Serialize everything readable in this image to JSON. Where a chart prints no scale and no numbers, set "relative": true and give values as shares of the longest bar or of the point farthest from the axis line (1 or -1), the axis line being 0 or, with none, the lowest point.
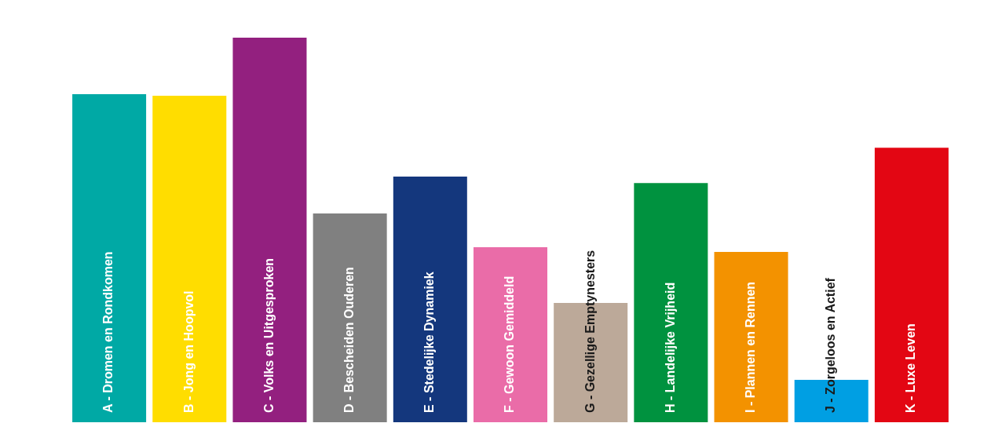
{
  "chart_data": {
    "type": "bar",
    "relative": true,
    "categories": [
      "A - Dromen en Rondkomen",
      "B - Jong en Hoopvol",
      "C - Volks en Uitgesproken",
      "D - Bescheiden Ouderen",
      "E - Stedelijke Dynamiek",
      "F - Gewoon Gemiddeld",
      "G - Gezellige Emptynesters",
      "H - Landelijke Vrijheid",
      "I - Plannen en Rennen",
      "J - Zorgeloos en Actief",
      "K - Luxe Leven"
    ],
    "values": [
      0.853,
      0.849,
      1,
      0.543,
      0.639,
      0.455,
      0.31,
      0.622,
      0.443,
      0.11,
      0.714
    ],
    "colors": [
      "#00a9a5",
      "#ffdd00",
      "#93207f",
      "#808080",
      "#14377d",
      "#ea6ca8",
      "#bca999",
      "#00923f",
      "#f39200",
      "#009fe3",
      "#e30613"
    ]
  }
}
